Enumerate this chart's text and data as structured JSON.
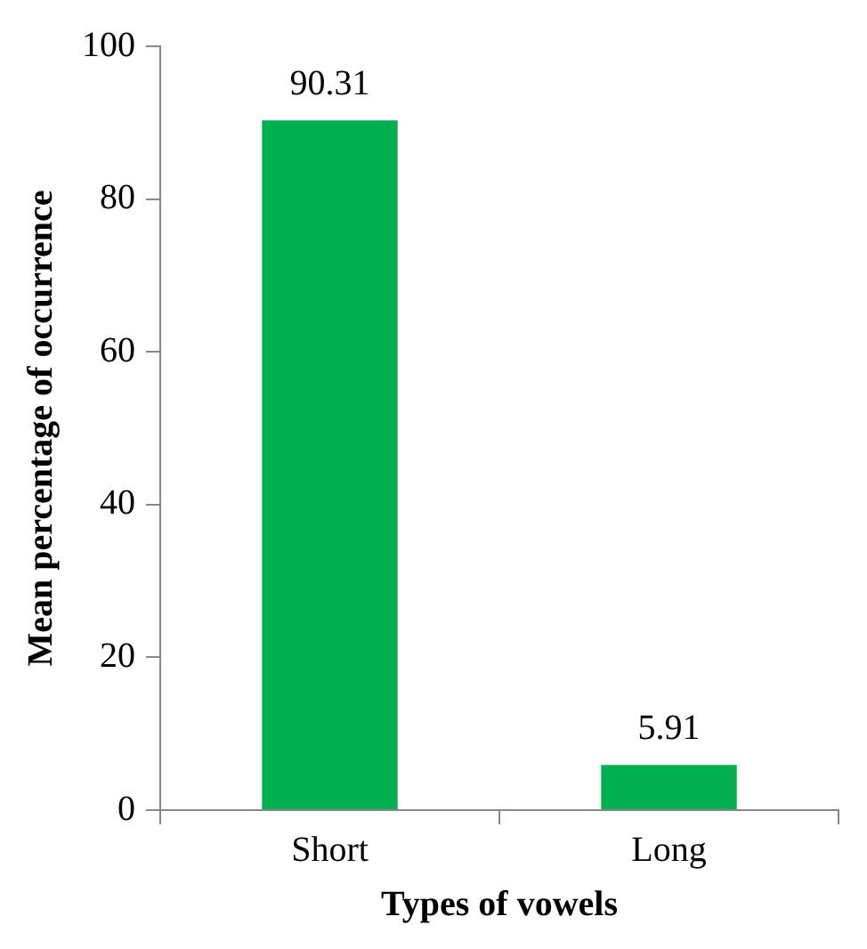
{
  "chart_data": {
    "type": "bar",
    "xlabel": "Types of vowels",
    "ylabel": "Mean percentage of occurrence",
    "categories": [
      "Short",
      "Long"
    ],
    "values": [
      90.31,
      5.91
    ],
    "color": "#00b050",
    "ylim": [
      0,
      100
    ],
    "yticks": [
      0,
      20,
      40,
      60,
      80,
      100
    ],
    "grid": false,
    "legend": false,
    "data_labels": true
  }
}
